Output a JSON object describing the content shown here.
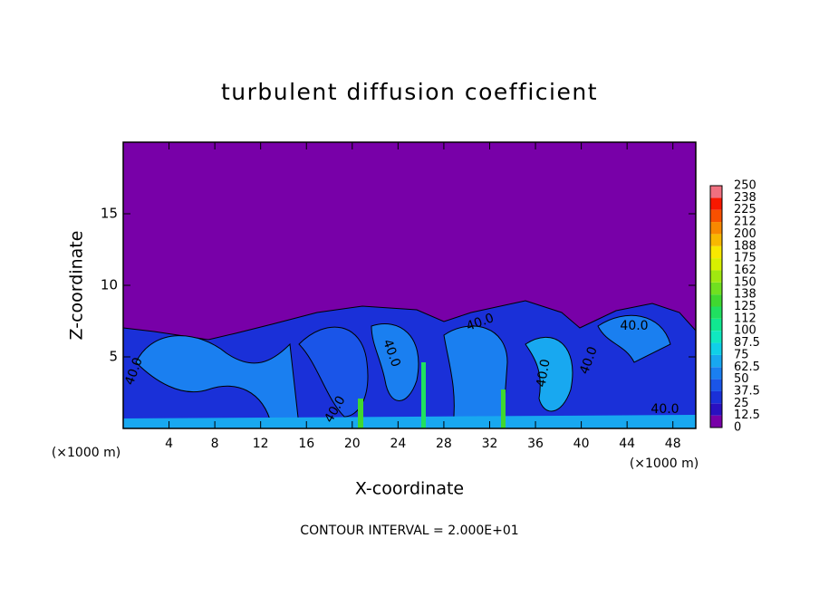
{
  "chart_data": {
    "type": "contour",
    "title": "turbulent diffusion coefficient",
    "x_label": "X-coordinate",
    "y_label": "Z-coordinate",
    "x_unit_label_left": "(×1000 m)",
    "x_unit_label_right": "(×1000 m)",
    "footer": "CONTOUR INTERVAL = 2.000E+01",
    "xlim": [
      0,
      50
    ],
    "ylim": [
      0,
      20
    ],
    "xticks": [
      4,
      8,
      12,
      16,
      20,
      24,
      28,
      32,
      36,
      40,
      44,
      48
    ],
    "yticks": [
      5,
      10,
      15
    ],
    "contour_labels": [
      "40.0",
      "40.0",
      "40.0",
      "40.0",
      "40.0",
      "40.0",
      "40.0",
      "40.0"
    ],
    "colorbar_ticks": [
      0,
      12.5,
      25,
      37.5,
      50,
      62.5,
      75,
      87.5,
      100,
      {
        "value": 112.5,
        "label": "112"
      },
      125,
      {
        "value": 137.5,
        "label": "138"
      },
      150,
      {
        "value": 162.5,
        "label": "162"
      },
      175,
      {
        "value": 187.5,
        "label": "188"
      },
      200,
      {
        "value": 212.5,
        "label": "212"
      },
      225,
      {
        "value": 237.5,
        "label": "238"
      },
      250
    ],
    "colorbar_colors": [
      "#7800a8",
      "#2a10c0",
      "#1a30d8",
      "#1a55e8",
      "#1a7ff0",
      "#18a8f0",
      "#10d0e8",
      "#10e8c0",
      "#10e890",
      "#20e060",
      "#40d830",
      "#70e020",
      "#a0e810",
      "#d8f000",
      "#f8e800",
      "#f8b800",
      "#f88800",
      "#f85000",
      "#f81800",
      "#f07080"
    ]
  }
}
